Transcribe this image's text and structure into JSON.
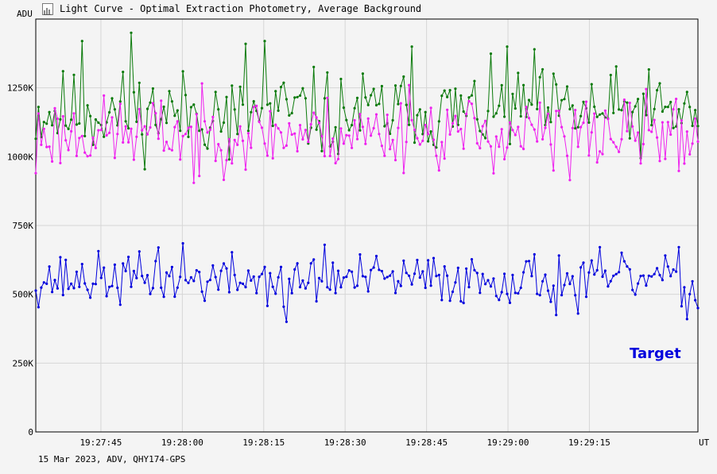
{
  "window": {
    "title": "Light Curve - Optimal Extraction Photometry, Average Background",
    "icon": "light-curve-chart-icon"
  },
  "footer": {
    "text": "15 Mar 2023, ADV, QHY174-GPS"
  },
  "colors": {
    "background": "#f4f4f4",
    "grid": "#d6d6d6",
    "target": "#0000dd",
    "comparison_green": "#0a7a0a",
    "comparison_magenta": "#ee22ee"
  },
  "chart_data": {
    "type": "line",
    "title": "Light Curve - Optimal Extraction Photometry, Average Background",
    "ylabel": "ADU",
    "xlabel": "UT",
    "ylim": [
      0,
      1500000
    ],
    "xlim": [
      "19:27:33.0",
      "19:29:35.0"
    ],
    "y_ticks": [
      0,
      250000,
      500000,
      750000,
      1000000,
      1250000
    ],
    "y_tick_labels": [
      "0",
      "250K",
      "500K",
      "750K",
      "1000K",
      "1250K"
    ],
    "x_ticks": [
      "19:27:45",
      "19:28:00",
      "19:28:15",
      "19:28:30",
      "19:28:45",
      "19:29:00",
      "19:29:15"
    ],
    "grid": true,
    "annotations": [
      {
        "text": "Target",
        "series": "target"
      }
    ],
    "sample_count": 244,
    "series": [
      {
        "key": "comparison_green",
        "color": "#0a7a0a",
        "base": 1160000,
        "amplitude": 75000,
        "seed": 11,
        "notable_points": [
          {
            "x": "19:27:41.5",
            "y": 1420000
          },
          {
            "x": "19:27:50.8",
            "y": 1450000
          },
          {
            "x": "19:28:11.8",
            "y": 1410000
          },
          {
            "x": "19:28:15.4",
            "y": 1420000
          },
          {
            "x": "19:28:42.4",
            "y": 1400000
          },
          {
            "x": "19:28:59.8",
            "y": 1400000
          },
          {
            "x": "19:29:04.9",
            "y": 1390000
          },
          {
            "x": "19:28:08.5",
            "y": 990000
          },
          {
            "x": "19:28:28.6",
            "y": 1010000
          }
        ]
      },
      {
        "key": "comparison_magenta",
        "color": "#ee22ee",
        "base": 1085000,
        "amplitude": 65000,
        "seed": 23,
        "notable_points": [
          {
            "x": "19:27:33.2",
            "y": 940000
          },
          {
            "x": "19:28:02.1",
            "y": 905000
          },
          {
            "x": "19:28:02.9",
            "y": 930000
          },
          {
            "x": "19:29:11.3",
            "y": 915000
          },
          {
            "x": "19:29:08.3",
            "y": 950000
          },
          {
            "x": "19:28:42.0",
            "y": 1260000
          },
          {
            "x": "19:29:32.6",
            "y": 975000
          }
        ]
      },
      {
        "key": "target",
        "name": "Target",
        "color": "#0000dd",
        "base": 555000,
        "amplitude": 45000,
        "seed": 37,
        "notable_points": [
          {
            "x": "19:28:19.0",
            "y": 400000
          },
          {
            "x": "19:28:18.6",
            "y": 455000
          },
          {
            "x": "19:28:26.2",
            "y": 680000
          },
          {
            "x": "19:27:55.7",
            "y": 670000
          },
          {
            "x": "19:28:00.0",
            "y": 685000
          },
          {
            "x": "19:29:09.0",
            "y": 425000
          },
          {
            "x": "19:29:12.7",
            "y": 430000
          },
          {
            "x": "19:29:33.1",
            "y": 410000
          },
          {
            "x": "19:29:34.8",
            "y": 450000
          }
        ]
      }
    ]
  }
}
